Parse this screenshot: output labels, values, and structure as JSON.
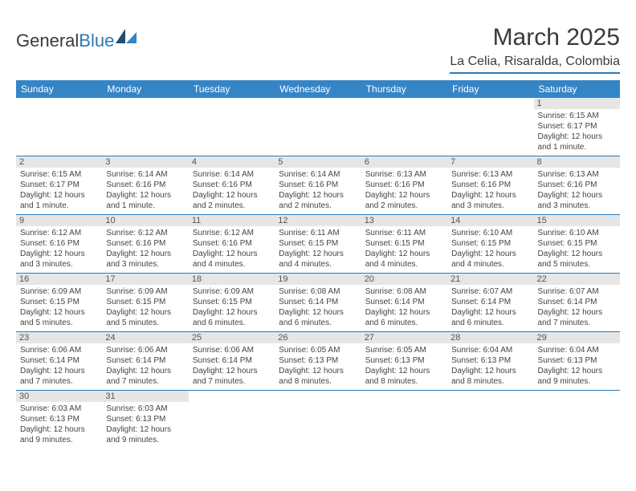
{
  "logo": {
    "word1": "General",
    "word2": "Blue"
  },
  "title": "March 2025",
  "location": "La Celia, Risaralda, Colombia",
  "colors": {
    "header_bg": "#3585c6",
    "header_text": "#ffffff",
    "accent": "#2a7ab8",
    "daynum_bg": "#e6e6e6",
    "body_text": "#444444"
  },
  "layout": {
    "columns": 7,
    "rows": 6,
    "first_day_column_index": 6
  },
  "weekdays": [
    "Sunday",
    "Monday",
    "Tuesday",
    "Wednesday",
    "Thursday",
    "Friday",
    "Saturday"
  ],
  "days": [
    {
      "n": 1,
      "sunrise": "6:15 AM",
      "sunset": "6:17 PM",
      "daylight": "12 hours and 1 minute."
    },
    {
      "n": 2,
      "sunrise": "6:15 AM",
      "sunset": "6:17 PM",
      "daylight": "12 hours and 1 minute."
    },
    {
      "n": 3,
      "sunrise": "6:14 AM",
      "sunset": "6:16 PM",
      "daylight": "12 hours and 1 minute."
    },
    {
      "n": 4,
      "sunrise": "6:14 AM",
      "sunset": "6:16 PM",
      "daylight": "12 hours and 2 minutes."
    },
    {
      "n": 5,
      "sunrise": "6:14 AM",
      "sunset": "6:16 PM",
      "daylight": "12 hours and 2 minutes."
    },
    {
      "n": 6,
      "sunrise": "6:13 AM",
      "sunset": "6:16 PM",
      "daylight": "12 hours and 2 minutes."
    },
    {
      "n": 7,
      "sunrise": "6:13 AM",
      "sunset": "6:16 PM",
      "daylight": "12 hours and 3 minutes."
    },
    {
      "n": 8,
      "sunrise": "6:13 AM",
      "sunset": "6:16 PM",
      "daylight": "12 hours and 3 minutes."
    },
    {
      "n": 9,
      "sunrise": "6:12 AM",
      "sunset": "6:16 PM",
      "daylight": "12 hours and 3 minutes."
    },
    {
      "n": 10,
      "sunrise": "6:12 AM",
      "sunset": "6:16 PM",
      "daylight": "12 hours and 3 minutes."
    },
    {
      "n": 11,
      "sunrise": "6:12 AM",
      "sunset": "6:16 PM",
      "daylight": "12 hours and 4 minutes."
    },
    {
      "n": 12,
      "sunrise": "6:11 AM",
      "sunset": "6:15 PM",
      "daylight": "12 hours and 4 minutes."
    },
    {
      "n": 13,
      "sunrise": "6:11 AM",
      "sunset": "6:15 PM",
      "daylight": "12 hours and 4 minutes."
    },
    {
      "n": 14,
      "sunrise": "6:10 AM",
      "sunset": "6:15 PM",
      "daylight": "12 hours and 4 minutes."
    },
    {
      "n": 15,
      "sunrise": "6:10 AM",
      "sunset": "6:15 PM",
      "daylight": "12 hours and 5 minutes."
    },
    {
      "n": 16,
      "sunrise": "6:09 AM",
      "sunset": "6:15 PM",
      "daylight": "12 hours and 5 minutes."
    },
    {
      "n": 17,
      "sunrise": "6:09 AM",
      "sunset": "6:15 PM",
      "daylight": "12 hours and 5 minutes."
    },
    {
      "n": 18,
      "sunrise": "6:09 AM",
      "sunset": "6:15 PM",
      "daylight": "12 hours and 6 minutes."
    },
    {
      "n": 19,
      "sunrise": "6:08 AM",
      "sunset": "6:14 PM",
      "daylight": "12 hours and 6 minutes."
    },
    {
      "n": 20,
      "sunrise": "6:08 AM",
      "sunset": "6:14 PM",
      "daylight": "12 hours and 6 minutes."
    },
    {
      "n": 21,
      "sunrise": "6:07 AM",
      "sunset": "6:14 PM",
      "daylight": "12 hours and 6 minutes."
    },
    {
      "n": 22,
      "sunrise": "6:07 AM",
      "sunset": "6:14 PM",
      "daylight": "12 hours and 7 minutes."
    },
    {
      "n": 23,
      "sunrise": "6:06 AM",
      "sunset": "6:14 PM",
      "daylight": "12 hours and 7 minutes."
    },
    {
      "n": 24,
      "sunrise": "6:06 AM",
      "sunset": "6:14 PM",
      "daylight": "12 hours and 7 minutes."
    },
    {
      "n": 25,
      "sunrise": "6:06 AM",
      "sunset": "6:14 PM",
      "daylight": "12 hours and 7 minutes."
    },
    {
      "n": 26,
      "sunrise": "6:05 AM",
      "sunset": "6:13 PM",
      "daylight": "12 hours and 8 minutes."
    },
    {
      "n": 27,
      "sunrise": "6:05 AM",
      "sunset": "6:13 PM",
      "daylight": "12 hours and 8 minutes."
    },
    {
      "n": 28,
      "sunrise": "6:04 AM",
      "sunset": "6:13 PM",
      "daylight": "12 hours and 8 minutes."
    },
    {
      "n": 29,
      "sunrise": "6:04 AM",
      "sunset": "6:13 PM",
      "daylight": "12 hours and 9 minutes."
    },
    {
      "n": 30,
      "sunrise": "6:03 AM",
      "sunset": "6:13 PM",
      "daylight": "12 hours and 9 minutes."
    },
    {
      "n": 31,
      "sunrise": "6:03 AM",
      "sunset": "6:13 PM",
      "daylight": "12 hours and 9 minutes."
    }
  ],
  "labels": {
    "sunrise": "Sunrise:",
    "sunset": "Sunset:",
    "daylight": "Daylight:"
  }
}
